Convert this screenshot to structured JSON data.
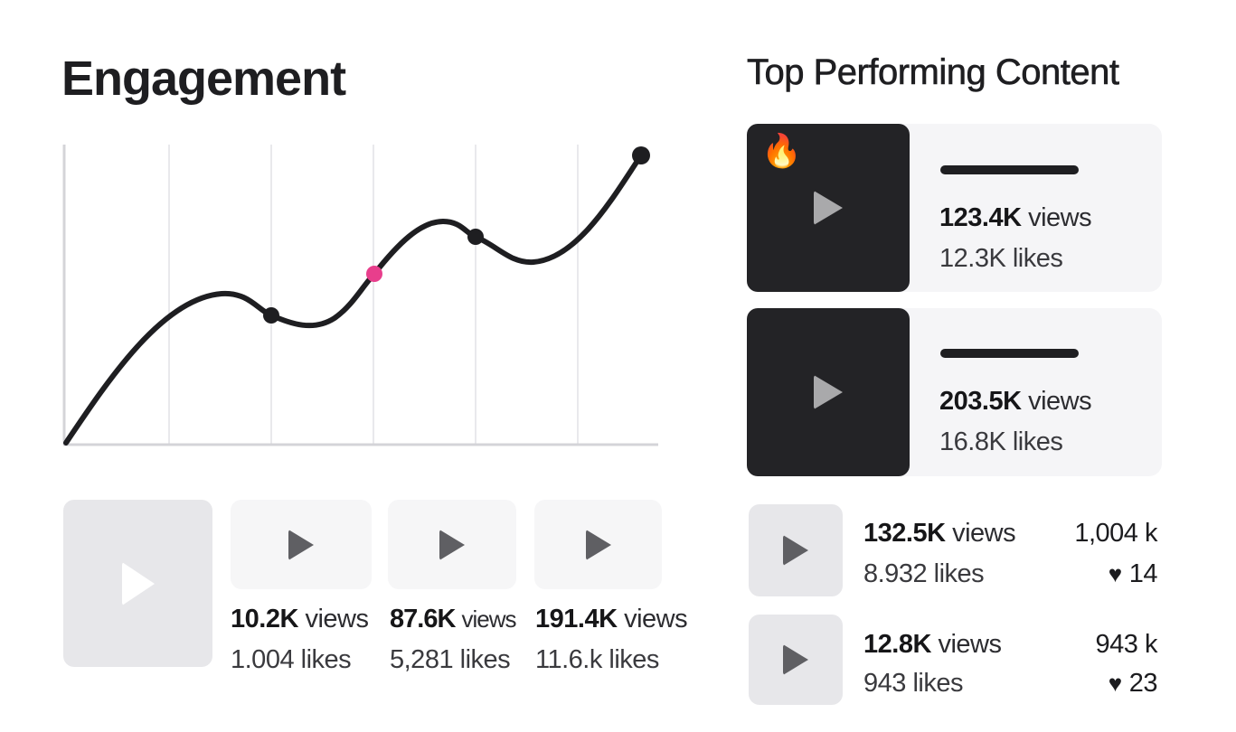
{
  "engagement": {
    "title": "Engagement",
    "highlight_color": "#e83e8c",
    "line_color": "#1e1e21",
    "videos": [
      {
        "views_value": "10.2K",
        "views_unit": "views",
        "likes": "1.004 likes"
      },
      {
        "views_value": "87.6K",
        "views_unit": "views",
        "likes": "5,281 likes"
      },
      {
        "views_value": "191.4K",
        "views_unit": "views",
        "likes": "11.6.k likes"
      }
    ]
  },
  "top_content": {
    "title": "Top Performing Content",
    "featured": [
      {
        "badge_icon": "fire",
        "badge": "🔥",
        "views_value": "123.4K",
        "views_unit": "views",
        "likes": "12.3K likes"
      },
      {
        "views_value": "203.5K",
        "views_unit": "views",
        "likes": "16.8K likes"
      }
    ],
    "list": [
      {
        "views_value": "132.5K",
        "views_unit": "views",
        "likes": "8.932 likes",
        "right_top": "1,004 k",
        "heart_icon": "heart",
        "heart_count": "14"
      },
      {
        "views_value": "12.8K",
        "views_unit": "views",
        "likes": "943 likes",
        "right_top": "943 k",
        "heart_icon": "heart",
        "heart_count": "23"
      }
    ]
  }
}
